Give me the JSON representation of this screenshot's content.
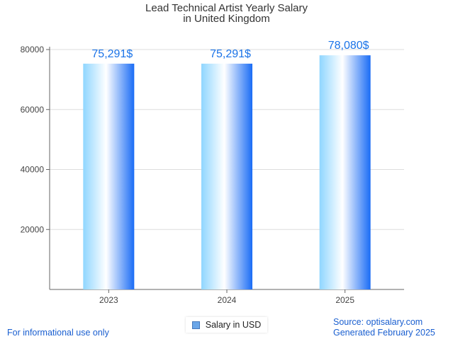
{
  "chart_data": {
    "type": "bar",
    "title_line1": "Lead Technical Artist Yearly Salary",
    "title_line2": "in United Kingdom",
    "categories": [
      "2023",
      "2024",
      "2025"
    ],
    "series": [
      {
        "name": "Salary in USD",
        "values": [
          75291,
          75291,
          78080
        ]
      }
    ],
    "data_labels": [
      "75,291$",
      "75,291$",
      "78,080$"
    ],
    "y_ticks": [
      20000,
      40000,
      60000,
      80000
    ],
    "ylim": [
      0,
      80000
    ],
    "grid": true,
    "legend_position": "bottom"
  },
  "footer": {
    "disclaimer": "For informational use only",
    "source": "Source: optisalary.com",
    "generated": "Generated February 2025"
  },
  "colors": {
    "bar_light": "#ffffff",
    "bar_mid": "#8fd6ff",
    "bar_dark": "#1a6cf5",
    "data_label": "#1a73e8"
  }
}
